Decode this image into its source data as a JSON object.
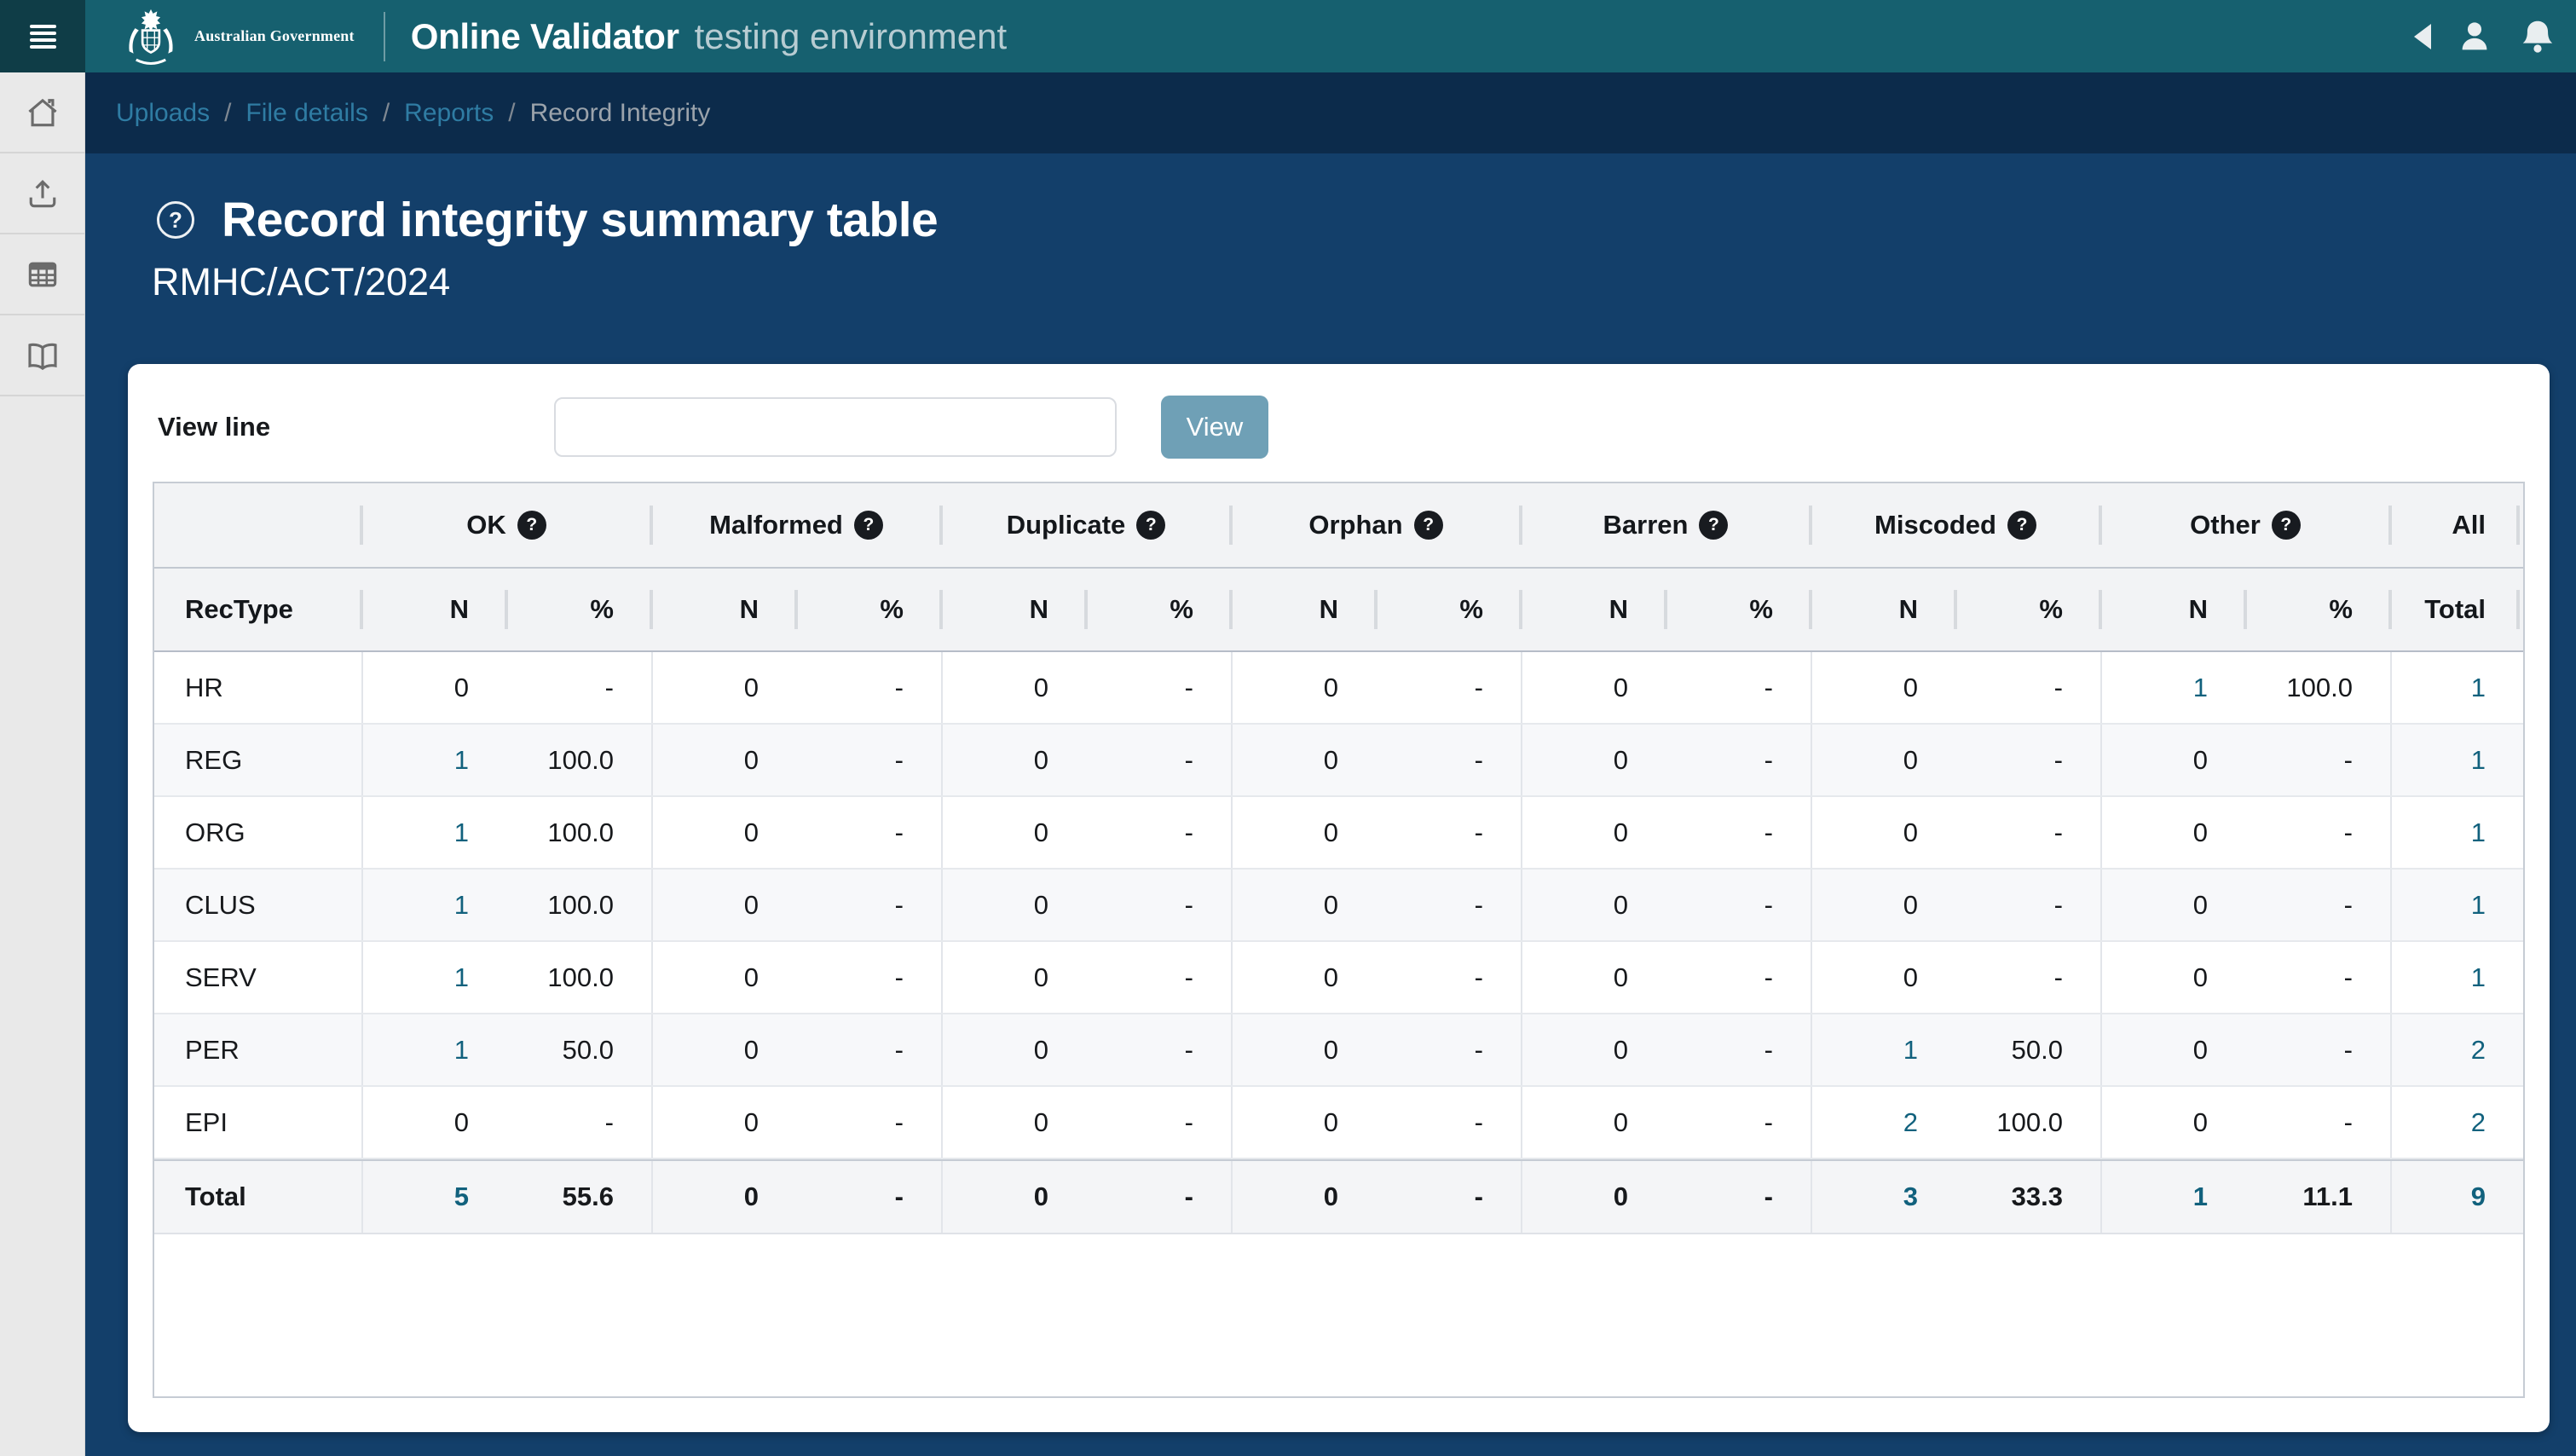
{
  "header": {
    "logo_text": "Australian Government",
    "app_title": "Online Validator",
    "env_label": "testing environment"
  },
  "icons": {
    "menu": "hamburger-menu-icon",
    "top_right": [
      "collapse-left-icon",
      "user-icon",
      "bell-icon"
    ],
    "sidebar": [
      "home-icon",
      "upload-icon",
      "table-icon",
      "book-icon"
    ],
    "title_help": "question-circle-outline-icon",
    "column_help": "question-circle-filled-icon"
  },
  "breadcrumb": {
    "separator": "/",
    "items": [
      {
        "label": "Uploads",
        "link": true
      },
      {
        "label": "File details",
        "link": true
      },
      {
        "label": "Reports",
        "link": true
      },
      {
        "label": "Record Integrity",
        "link": false
      }
    ]
  },
  "page": {
    "title": "Record integrity summary table",
    "subtitle": "RMHC/ACT/2024"
  },
  "view_line": {
    "label": "View line",
    "input_value": "",
    "button_label": "View"
  },
  "table": {
    "group_headers": [
      {
        "label": "OK",
        "help": true
      },
      {
        "label": "Malformed",
        "help": true
      },
      {
        "label": "Duplicate",
        "help": true
      },
      {
        "label": "Orphan",
        "help": true
      },
      {
        "label": "Barren",
        "help": true
      },
      {
        "label": "Miscoded",
        "help": true
      },
      {
        "label": "Other",
        "help": true
      },
      {
        "label": "All",
        "help": false
      }
    ],
    "col_headers": {
      "rectype": "RecType",
      "n": "N",
      "pct": "%",
      "total": "Total"
    },
    "rows": [
      {
        "rectype": "HR",
        "cells": [
          [
            "0",
            "-"
          ],
          [
            "0",
            "-"
          ],
          [
            "0",
            "-"
          ],
          [
            "0",
            "-"
          ],
          [
            "0",
            "-"
          ],
          [
            "0",
            "-"
          ],
          [
            "1",
            "100.0"
          ]
        ],
        "total": "1"
      },
      {
        "rectype": "REG",
        "cells": [
          [
            "1",
            "100.0"
          ],
          [
            "0",
            "-"
          ],
          [
            "0",
            "-"
          ],
          [
            "0",
            "-"
          ],
          [
            "0",
            "-"
          ],
          [
            "0",
            "-"
          ],
          [
            "0",
            "-"
          ]
        ],
        "total": "1"
      },
      {
        "rectype": "ORG",
        "cells": [
          [
            "1",
            "100.0"
          ],
          [
            "0",
            "-"
          ],
          [
            "0",
            "-"
          ],
          [
            "0",
            "-"
          ],
          [
            "0",
            "-"
          ],
          [
            "0",
            "-"
          ],
          [
            "0",
            "-"
          ]
        ],
        "total": "1"
      },
      {
        "rectype": "CLUS",
        "cells": [
          [
            "1",
            "100.0"
          ],
          [
            "0",
            "-"
          ],
          [
            "0",
            "-"
          ],
          [
            "0",
            "-"
          ],
          [
            "0",
            "-"
          ],
          [
            "0",
            "-"
          ],
          [
            "0",
            "-"
          ]
        ],
        "total": "1"
      },
      {
        "rectype": "SERV",
        "cells": [
          [
            "1",
            "100.0"
          ],
          [
            "0",
            "-"
          ],
          [
            "0",
            "-"
          ],
          [
            "0",
            "-"
          ],
          [
            "0",
            "-"
          ],
          [
            "0",
            "-"
          ],
          [
            "0",
            "-"
          ]
        ],
        "total": "1"
      },
      {
        "rectype": "PER",
        "cells": [
          [
            "1",
            "50.0"
          ],
          [
            "0",
            "-"
          ],
          [
            "0",
            "-"
          ],
          [
            "0",
            "-"
          ],
          [
            "0",
            "-"
          ],
          [
            "1",
            "50.0"
          ],
          [
            "0",
            "-"
          ]
        ],
        "total": "2"
      },
      {
        "rectype": "EPI",
        "cells": [
          [
            "0",
            "-"
          ],
          [
            "0",
            "-"
          ],
          [
            "0",
            "-"
          ],
          [
            "0",
            "-"
          ],
          [
            "0",
            "-"
          ],
          [
            "2",
            "100.0"
          ],
          [
            "0",
            "-"
          ]
        ],
        "total": "2"
      }
    ],
    "total_row": {
      "rectype": "Total",
      "cells": [
        [
          "5",
          "55.6"
        ],
        [
          "0",
          "-"
        ],
        [
          "0",
          "-"
        ],
        [
          "0",
          "-"
        ],
        [
          "0",
          "-"
        ],
        [
          "3",
          "33.3"
        ],
        [
          "1",
          "11.1"
        ]
      ],
      "total": "9"
    }
  },
  "colors": {
    "header_teal": "#16606f",
    "menu_strip_teal": "#0f3d47",
    "breadcrumb_navy": "#0c2b4b",
    "content_navy": "#133f6a",
    "button_blue": "#6fa0b6",
    "link_teal": "#11617d",
    "breadcrumb_link": "#2f7ca3"
  }
}
